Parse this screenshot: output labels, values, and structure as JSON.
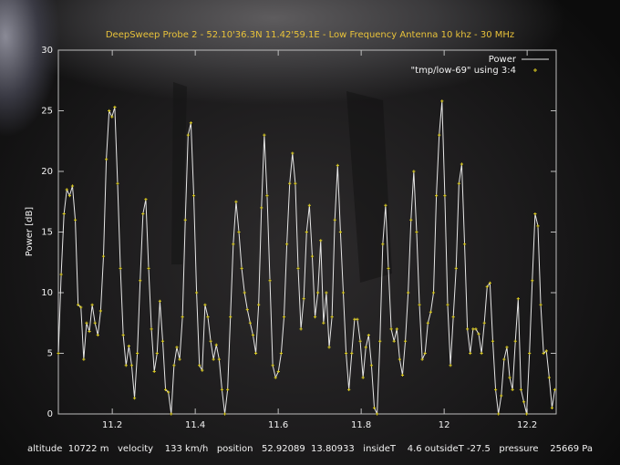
{
  "chart_data": {
    "type": "line",
    "title": "DeepSweep Probe 2 - 52.10'36.3N 11.42'59.1E - Low Frequency Antenna 10 khz - 30 MHz",
    "y_label": "Power [dB]",
    "status_bar": "altitude  10722 m   velocity    133 km/h   position   52.92089  13.80933   insideT    4.6 outsideT -27.5   pressure    25669 Pa",
    "xlim": [
      11.07,
      12.27
    ],
    "ylim": [
      0,
      30
    ],
    "xticks": [
      11.2,
      11.4,
      11.6,
      11.8,
      12,
      12.2
    ],
    "yticks": [
      0,
      5,
      10,
      15,
      20,
      25,
      30
    ],
    "grid": false,
    "legend": "top-right",
    "x": [
      11.07,
      11.0768,
      11.0836,
      11.0904,
      11.0972,
      11.104,
      11.1108,
      11.1176,
      11.1244,
      11.1312,
      11.138,
      11.1448,
      11.1516,
      11.1584,
      11.1652,
      11.172,
      11.1788,
      11.1856,
      11.1924,
      11.1992,
      11.206,
      11.2128,
      11.2196,
      11.2264,
      11.2332,
      11.24,
      11.2468,
      11.2536,
      11.2604,
      11.2672,
      11.274,
      11.2808,
      11.2876,
      11.2944,
      11.3012,
      11.308,
      11.3148,
      11.3216,
      11.3284,
      11.3352,
      11.342,
      11.3488,
      11.3556,
      11.3624,
      11.3692,
      11.376,
      11.3828,
      11.3896,
      11.3964,
      11.4032,
      11.41,
      11.4168,
      11.4236,
      11.4304,
      11.4372,
      11.444,
      11.4508,
      11.4576,
      11.4644,
      11.4712,
      11.478,
      11.4848,
      11.4916,
      11.4984,
      11.5052,
      11.512,
      11.5188,
      11.5256,
      11.5324,
      11.5392,
      11.546,
      11.5528,
      11.5596,
      11.5664,
      11.5732,
      11.58,
      11.5868,
      11.5936,
      11.6004,
      11.6072,
      11.614,
      11.6208,
      11.6276,
      11.6344,
      11.6412,
      11.648,
      11.6548,
      11.6616,
      11.6684,
      11.6752,
      11.682,
      11.6888,
      11.6956,
      11.7024,
      11.7092,
      11.716,
      11.7228,
      11.7296,
      11.7364,
      11.7432,
      11.75,
      11.7568,
      11.7636,
      11.7704,
      11.7772,
      11.784,
      11.7908,
      11.7976,
      11.8044,
      11.8112,
      11.818,
      11.8248,
      11.8316,
      11.8384,
      11.8452,
      11.852,
      11.8588,
      11.8656,
      11.8724,
      11.8792,
      11.886,
      11.8928,
      11.8996,
      11.9064,
      11.9132,
      11.92,
      11.9268,
      11.9336,
      11.9404,
      11.9472,
      11.954,
      11.9608,
      11.9676,
      11.9744,
      11.9812,
      11.988,
      11.9948,
      12.0016,
      12.0084,
      12.0152,
      12.022,
      12.0288,
      12.0356,
      12.0424,
      12.0492,
      12.056,
      12.0628,
      12.0696,
      12.0764,
      12.0832,
      12.09,
      12.0968,
      12.1036,
      12.1104,
      12.1172,
      12.124,
      12.1308,
      12.1376,
      12.1444,
      12.1512,
      12.158,
      12.1648,
      12.1716,
      12.1784,
      12.1852,
      12.192,
      12.1988,
      12.2056,
      12.2124,
      12.2192,
      12.226,
      12.2328,
      12.2396,
      12.2464,
      12.2532,
      12.26,
      12.2668
    ],
    "series": [
      {
        "name": "Power",
        "color": "#e6e6e6",
        "style": "line",
        "values": [
          5,
          11.5,
          16.5,
          18.5,
          18,
          18.8,
          16,
          9,
          8.8,
          4.5,
          7.5,
          6.8,
          9,
          7.5,
          6.5,
          8.5,
          13,
          21,
          25,
          24.5,
          25.3,
          19,
          12,
          6.5,
          4,
          5.6,
          4,
          1.3,
          5,
          11,
          16.5,
          17.7,
          12,
          7,
          3.5,
          5,
          9.3,
          6,
          2,
          1.8,
          0,
          4,
          5.5,
          4.5,
          8,
          16,
          23,
          24,
          18,
          10,
          4,
          3.6,
          9,
          8,
          6,
          4.5,
          5.7,
          4.5,
          2,
          0,
          2,
          8,
          14,
          17.5,
          15,
          12,
          10,
          8.6,
          7.5,
          6.5,
          5,
          9,
          17,
          23,
          18,
          11,
          4,
          3,
          3.5,
          5,
          8,
          14,
          19,
          21.5,
          19,
          12,
          7,
          9.5,
          15,
          17.2,
          13,
          8,
          10,
          14.3,
          7.5,
          10,
          5.5,
          8,
          16,
          20.5,
          15,
          10,
          5,
          2,
          5,
          7.8,
          7.8,
          6,
          3,
          5.5,
          6.5,
          4,
          0.5,
          0,
          6,
          14,
          17.2,
          12,
          7,
          6,
          7,
          4.5,
          3.2,
          6,
          10,
          16,
          20,
          15,
          9,
          4.5,
          5,
          7.5,
          8.4,
          10,
          18,
          23,
          25.8,
          18,
          9,
          4,
          8,
          12,
          19,
          20.6,
          14,
          7,
          5,
          7,
          7,
          6.6,
          5,
          7.5,
          10.5,
          10.8,
          6,
          2,
          0,
          1.5,
          4.5,
          5.5,
          3,
          2,
          6,
          9.5,
          2,
          1,
          0,
          5,
          11,
          16.5,
          15.5,
          9,
          5,
          5.2,
          3,
          0.5,
          2
        ]
      },
      {
        "name": "\"tmp/low-69\" using 3:4",
        "color": "#d8c820",
        "style": "points",
        "values": [
          5,
          11.5,
          16.5,
          18.5,
          18,
          18.8,
          16,
          9,
          8.8,
          4.5,
          7.5,
          6.8,
          9,
          7.5,
          6.5,
          8.5,
          13,
          21,
          25,
          24.5,
          25.3,
          19,
          12,
          6.5,
          4,
          5.6,
          4,
          1.3,
          5,
          11,
          16.5,
          17.7,
          12,
          7,
          3.5,
          5,
          9.3,
          6,
          2,
          1.8,
          0,
          4,
          5.5,
          4.5,
          8,
          16,
          23,
          24,
          18,
          10,
          4,
          3.6,
          9,
          8,
          6,
          4.5,
          5.7,
          4.5,
          2,
          0,
          2,
          8,
          14,
          17.5,
          15,
          12,
          10,
          8.6,
          7.5,
          6.5,
          5,
          9,
          17,
          23,
          18,
          11,
          4,
          3,
          3.5,
          5,
          8,
          14,
          19,
          21.5,
          19,
          12,
          7,
          9.5,
          15,
          17.2,
          13,
          8,
          10,
          14.3,
          7.5,
          10,
          5.5,
          8,
          16,
          20.5,
          15,
          10,
          5,
          2,
          5,
          7.8,
          7.8,
          6,
          3,
          5.5,
          6.5,
          4,
          0.5,
          0,
          6,
          14,
          17.2,
          12,
          7,
          6,
          7,
          4.5,
          3.2,
          6,
          10,
          16,
          20,
          15,
          9,
          4.5,
          5,
          7.5,
          8.4,
          10,
          18,
          23,
          25.8,
          18,
          9,
          4,
          8,
          12,
          19,
          20.6,
          14,
          7,
          5,
          7,
          7,
          6.6,
          5,
          7.5,
          10.5,
          10.8,
          6,
          2,
          0,
          1.5,
          4.5,
          5.5,
          3,
          2,
          6,
          9.5,
          2,
          1,
          0,
          5,
          11,
          16.5,
          15.5,
          9,
          5,
          5.2,
          3,
          0.5,
          2
        ]
      }
    ]
  }
}
